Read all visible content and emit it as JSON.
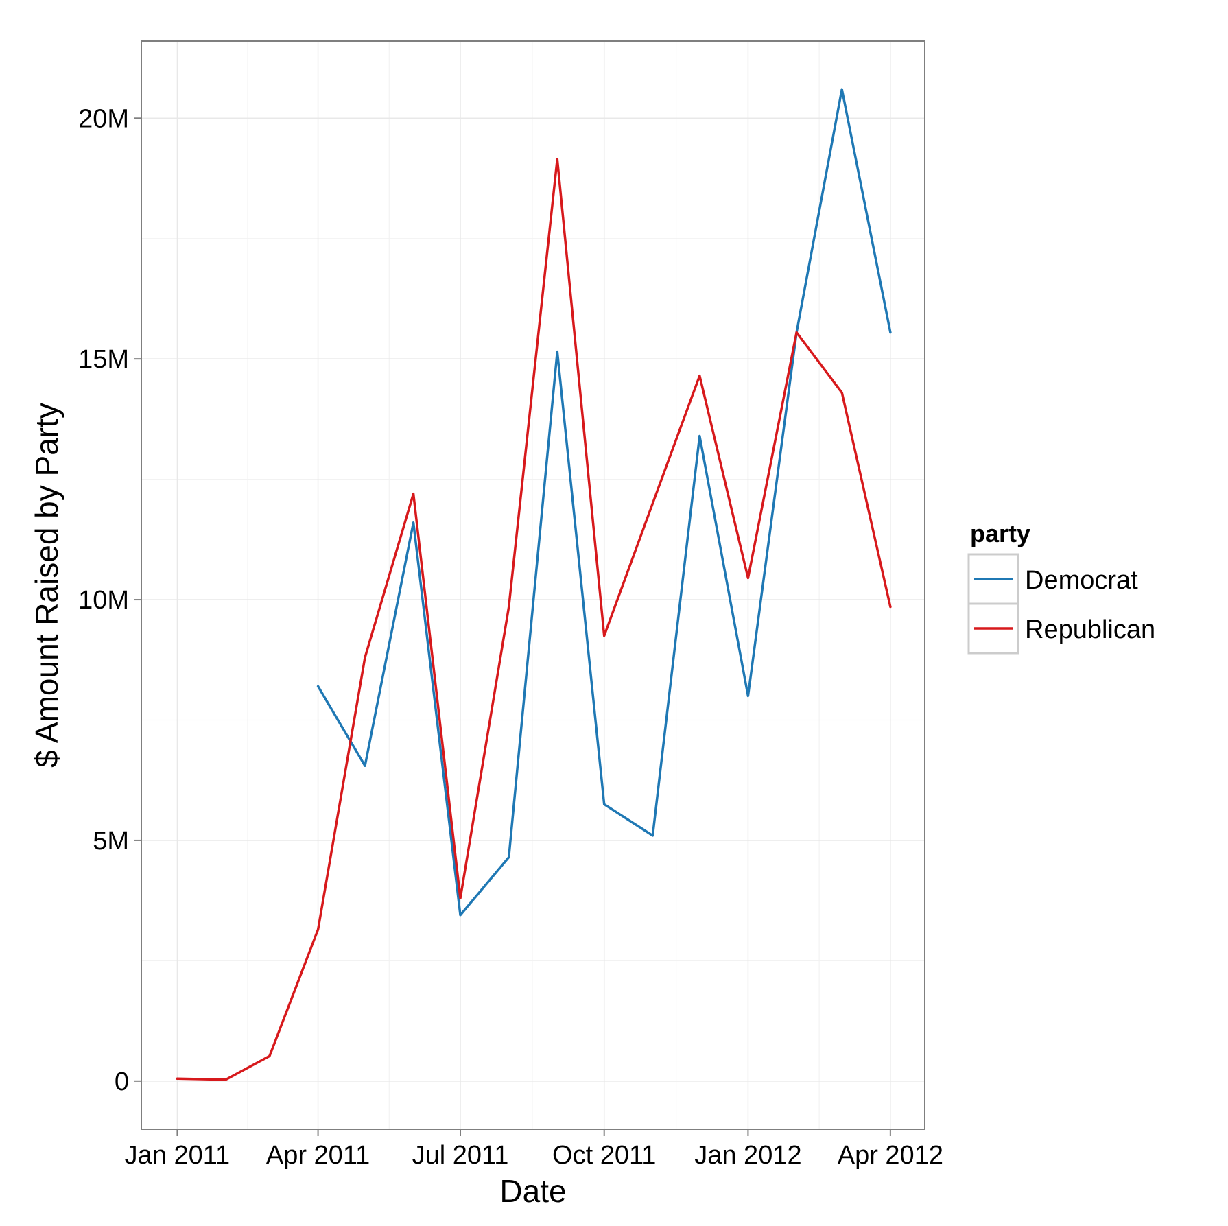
{
  "chart_data": {
    "type": "line",
    "xlabel": "Date",
    "ylabel": "$ Amount Raised by Party",
    "x_ticks": [
      "2011-01-01",
      "2011-04-01",
      "2011-07-01",
      "2011-10-01",
      "2012-01-01",
      "2012-04-01"
    ],
    "x_tick_labels": [
      "Jan 2011",
      "Apr 2011",
      "Jul 2011",
      "Oct 2011",
      "Jan 2012",
      "Apr 2012"
    ],
    "y_ticks": [
      0,
      5000000,
      10000000,
      15000000,
      20000000
    ],
    "y_tick_labels": [
      "0",
      "5M",
      "10M",
      "15M",
      "20M"
    ],
    "xlim": [
      "2010-12-09",
      "2012-04-23"
    ],
    "ylim": [
      -1000000,
      21600000
    ],
    "grid": true,
    "legend": {
      "title": "party",
      "position": "right"
    },
    "series": [
      {
        "name": "Democrat",
        "color": "#1f78b4",
        "points": [
          {
            "x": "2011-04-01",
            "y": 8200000
          },
          {
            "x": "2011-05-01",
            "y": 6550000
          },
          {
            "x": "2011-06-01",
            "y": 11600000
          },
          {
            "x": "2011-07-01",
            "y": 3450000
          },
          {
            "x": "2011-08-01",
            "y": 4650000
          },
          {
            "x": "2011-09-01",
            "y": 15150000
          },
          {
            "x": "2011-10-01",
            "y": 5750000
          },
          {
            "x": "2011-11-01",
            "y": 5100000
          },
          {
            "x": "2011-12-01",
            "y": 13400000
          },
          {
            "x": "2012-01-01",
            "y": 8000000
          },
          {
            "x": "2012-02-01",
            "y": 15550000
          },
          {
            "x": "2012-03-01",
            "y": 20600000
          },
          {
            "x": "2012-04-01",
            "y": 15550000
          }
        ]
      },
      {
        "name": "Republican",
        "color": "#d7191c",
        "points": [
          {
            "x": "2011-01-01",
            "y": 50000
          },
          {
            "x": "2011-02-01",
            "y": 30000
          },
          {
            "x": "2011-03-01",
            "y": 520000
          },
          {
            "x": "2011-04-01",
            "y": 3150000
          },
          {
            "x": "2011-05-01",
            "y": 8800000
          },
          {
            "x": "2011-06-01",
            "y": 12200000
          },
          {
            "x": "2011-07-01",
            "y": 3800000
          },
          {
            "x": "2011-08-01",
            "y": 9850000
          },
          {
            "x": "2011-09-01",
            "y": 19150000
          },
          {
            "x": "2011-10-01",
            "y": 9250000
          },
          {
            "x": "2011-11-01",
            "y": 12000000
          },
          {
            "x": "2011-12-01",
            "y": 14650000
          },
          {
            "x": "2012-01-01",
            "y": 10450000
          },
          {
            "x": "2012-02-01",
            "y": 15550000
          },
          {
            "x": "2012-03-01",
            "y": 14300000
          },
          {
            "x": "2012-04-01",
            "y": 9850000
          }
        ]
      }
    ]
  }
}
